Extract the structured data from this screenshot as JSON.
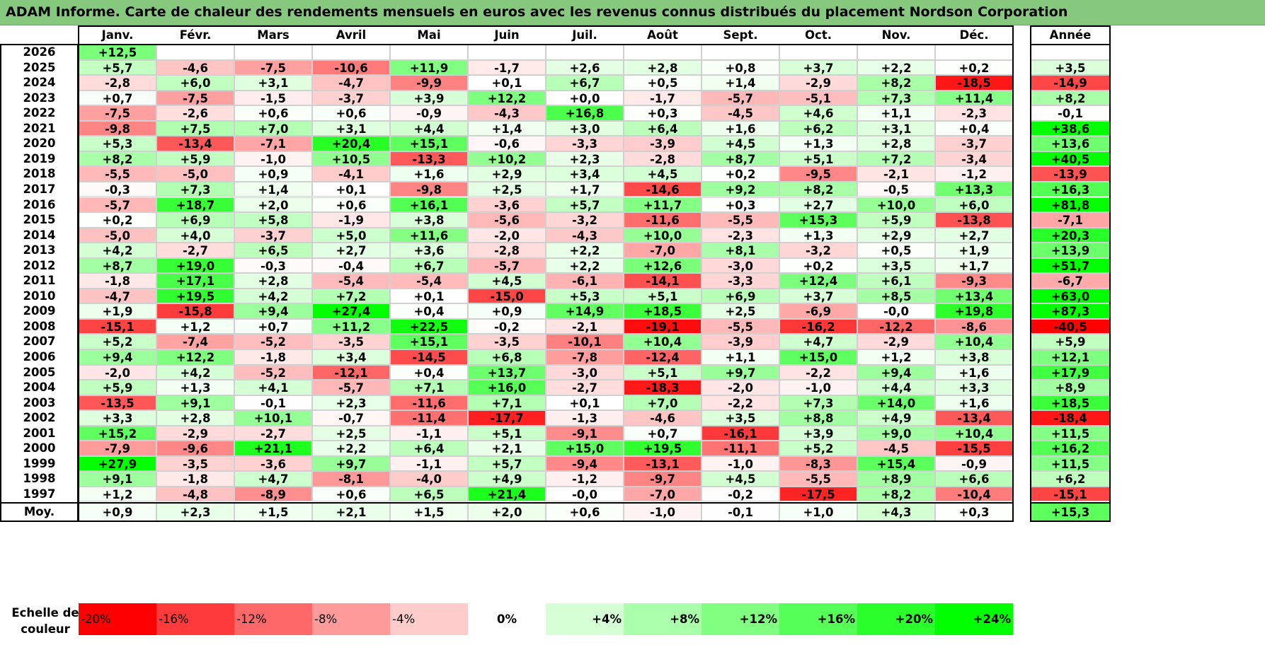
{
  "title": "ADAM Informe. Carte de chaleur des rendements mensuels en euros avec les revenus connus distribués du placement Nordson Corporation",
  "chart_data": {
    "type": "heatmap",
    "title": "ADAM Informe. Carte de chaleur des rendements mensuels en euros avec les revenus connus distribués du placement Nordson Corporation",
    "months": [
      "Janv.",
      "Févr.",
      "Mars",
      "Avril",
      "Mai",
      "Juin",
      "Juil.",
      "Août",
      "Sept.",
      "Oct.",
      "Nov.",
      "Déc."
    ],
    "year_header": "Année",
    "rows": [
      {
        "year": "2026",
        "values": [
          "+12,5",
          "",
          "",
          "",
          "",
          "",
          "",
          "",
          "",
          "",
          "",
          ""
        ],
        "annual": ""
      },
      {
        "year": "2025",
        "values": [
          "+5,7",
          "-4,6",
          "-7,5",
          "-10,6",
          "+11,9",
          "-1,7",
          "+2,6",
          "+2,8",
          "+0,8",
          "+3,7",
          "+2,2",
          "+0,2"
        ],
        "annual": "+3,5"
      },
      {
        "year": "2024",
        "values": [
          "-2,8",
          "+6,0",
          "+3,1",
          "-4,7",
          "-9,9",
          "+0,1",
          "+6,7",
          "+0,5",
          "+1,4",
          "-2,9",
          "+8,2",
          "-18,5"
        ],
        "annual": "-14,9"
      },
      {
        "year": "2023",
        "values": [
          "+0,7",
          "-7,5",
          "-1,5",
          "-3,7",
          "+3,9",
          "+12,2",
          "+0,0",
          "-1,7",
          "-5,7",
          "-5,1",
          "+7,3",
          "+11,4"
        ],
        "annual": "+8,2"
      },
      {
        "year": "2022",
        "values": [
          "-7,5",
          "-2,6",
          "+0,6",
          "+0,6",
          "-0,9",
          "-4,3",
          "+16,8",
          "+0,3",
          "-4,5",
          "+4,6",
          "+1,1",
          "-2,3"
        ],
        "annual": "-0,1"
      },
      {
        "year": "2021",
        "values": [
          "-9,8",
          "+7,5",
          "+7,0",
          "+3,1",
          "+4,4",
          "+1,4",
          "+3,0",
          "+6,4",
          "+1,6",
          "+6,2",
          "+3,1",
          "+0,4"
        ],
        "annual": "+38,6"
      },
      {
        "year": "2020",
        "values": [
          "+5,3",
          "-13,4",
          "-7,1",
          "+20,4",
          "+15,1",
          "-0,6",
          "-3,3",
          "-3,9",
          "+4,5",
          "+1,3",
          "+2,8",
          "-3,7"
        ],
        "annual": "+13,6"
      },
      {
        "year": "2019",
        "values": [
          "+8,2",
          "+5,9",
          "-1,0",
          "+10,5",
          "-13,3",
          "+10,2",
          "+2,3",
          "-2,8",
          "+8,7",
          "+5,1",
          "+7,2",
          "-3,4"
        ],
        "annual": "+40,5"
      },
      {
        "year": "2018",
        "values": [
          "-5,5",
          "-5,0",
          "+0,9",
          "-4,1",
          "+1,6",
          "+2,9",
          "+3,4",
          "+4,5",
          "+0,2",
          "-9,5",
          "-2,1",
          "-1,2"
        ],
        "annual": "-13,9"
      },
      {
        "year": "2017",
        "values": [
          "-0,3",
          "+7,3",
          "+1,4",
          "+0,1",
          "-9,8",
          "+2,5",
          "+1,7",
          "-14,6",
          "+9,2",
          "+8,2",
          "-0,5",
          "+13,3"
        ],
        "annual": "+16,3"
      },
      {
        "year": "2016",
        "values": [
          "-5,7",
          "+18,7",
          "+2,0",
          "+0,6",
          "+16,1",
          "-3,6",
          "+5,7",
          "+11,7",
          "+0,3",
          "+2,7",
          "+10,0",
          "+6,0"
        ],
        "annual": "+81,8"
      },
      {
        "year": "2015",
        "values": [
          "+0,2",
          "+6,9",
          "+5,8",
          "-1,9",
          "+3,8",
          "-5,6",
          "-3,2",
          "-11,6",
          "-5,5",
          "+15,3",
          "+5,9",
          "-13,8"
        ],
        "annual": "-7,1"
      },
      {
        "year": "2014",
        "values": [
          "-5,0",
          "+4,0",
          "-3,7",
          "+5,0",
          "+11,6",
          "-2,0",
          "-4,3",
          "+10,0",
          "-2,3",
          "+1,3",
          "+2,9",
          "+2,7"
        ],
        "annual": "+20,3"
      },
      {
        "year": "2013",
        "values": [
          "+4,2",
          "-2,7",
          "+6,5",
          "+2,7",
          "+3,6",
          "-2,8",
          "+2,2",
          "-7,0",
          "+8,1",
          "-3,2",
          "+0,5",
          "+1,9"
        ],
        "annual": "+13,9"
      },
      {
        "year": "2012",
        "values": [
          "+8,7",
          "+19,0",
          "-0,3",
          "-0,4",
          "+6,7",
          "-5,7",
          "+2,2",
          "+12,6",
          "-3,0",
          "+0,2",
          "+3,5",
          "+1,7"
        ],
        "annual": "+51,7"
      },
      {
        "year": "2011",
        "values": [
          "-1,8",
          "+17,1",
          "+2,8",
          "-5,4",
          "-5,4",
          "+4,5",
          "-6,1",
          "-14,1",
          "-3,3",
          "+12,4",
          "+6,1",
          "-9,3"
        ],
        "annual": "-6,7"
      },
      {
        "year": "2010",
        "values": [
          "-4,7",
          "+19,5",
          "+4,2",
          "+7,2",
          "+0,1",
          "-15,0",
          "+5,3",
          "+5,1",
          "+6,9",
          "+3,7",
          "+8,5",
          "+13,4"
        ],
        "annual": "+63,0"
      },
      {
        "year": "2009",
        "values": [
          "+1,9",
          "-15,8",
          "+9,4",
          "+27,4",
          "+0,4",
          "+0,9",
          "+14,9",
          "+18,5",
          "+2,5",
          "-6,9",
          "-0,0",
          "+19,8"
        ],
        "annual": "+87,3"
      },
      {
        "year": "2008",
        "values": [
          "-15,1",
          "+1,2",
          "+0,7",
          "+11,2",
          "+22,5",
          "-0,2",
          "-2,1",
          "-19,1",
          "-5,5",
          "-16,2",
          "-12,2",
          "-8,6"
        ],
        "annual": "-40,5"
      },
      {
        "year": "2007",
        "values": [
          "+5,2",
          "-7,4",
          "-5,2",
          "-3,5",
          "+15,1",
          "-3,5",
          "-10,1",
          "+10,4",
          "-3,9",
          "+4,7",
          "-2,9",
          "+10,4"
        ],
        "annual": "+5,9"
      },
      {
        "year": "2006",
        "values": [
          "+9,4",
          "+12,2",
          "-1,8",
          "+3,4",
          "-14,5",
          "+6,8",
          "-7,8",
          "-12,4",
          "+1,1",
          "+15,0",
          "+1,2",
          "+3,8"
        ],
        "annual": "+12,1"
      },
      {
        "year": "2005",
        "values": [
          "-2,0",
          "+4,2",
          "-5,2",
          "-12,1",
          "+0,4",
          "+13,7",
          "-3,0",
          "+5,1",
          "+9,7",
          "-2,2",
          "+9,4",
          "+1,6"
        ],
        "annual": "+17,9"
      },
      {
        "year": "2004",
        "values": [
          "+5,9",
          "+1,3",
          "+4,1",
          "-5,7",
          "+7,1",
          "+16,0",
          "-2,7",
          "-18,3",
          "-2,0",
          "-1,0",
          "+4,4",
          "+3,3"
        ],
        "annual": "+8,9"
      },
      {
        "year": "2003",
        "values": [
          "-13,5",
          "+9,1",
          "-0,1",
          "+2,3",
          "-11,6",
          "+7,1",
          "+0,1",
          "+7,0",
          "-2,2",
          "+7,3",
          "+14,0",
          "+1,6"
        ],
        "annual": "+18,5"
      },
      {
        "year": "2002",
        "values": [
          "+3,3",
          "+2,8",
          "+10,1",
          "-0,7",
          "-11,4",
          "-17,7",
          "-1,3",
          "-4,6",
          "+3,5",
          "+8,8",
          "+4,9",
          "-13,4"
        ],
        "annual": "-18,4"
      },
      {
        "year": "2001",
        "values": [
          "+15,2",
          "-2,9",
          "-2,7",
          "+2,5",
          "-1,1",
          "+5,1",
          "-9,1",
          "+0,7",
          "-16,1",
          "+3,9",
          "+9,0",
          "+10,4"
        ],
        "annual": "+11,5"
      },
      {
        "year": "2000",
        "values": [
          "-7,9",
          "-9,6",
          "+21,1",
          "+2,2",
          "+6,4",
          "+2,1",
          "+15,0",
          "+19,5",
          "-11,1",
          "+5,2",
          "-4,5",
          "-15,5"
        ],
        "annual": "+16,2"
      },
      {
        "year": "1999",
        "values": [
          "+27,9",
          "-3,5",
          "-3,6",
          "+9,7",
          "-1,1",
          "+5,7",
          "-9,4",
          "-13,1",
          "-1,0",
          "-8,3",
          "+15,4",
          "-0,9"
        ],
        "annual": "+11,5"
      },
      {
        "year": "1998",
        "values": [
          "+9,1",
          "-1,8",
          "+4,7",
          "-8,1",
          "-4,0",
          "+4,9",
          "-1,2",
          "-9,7",
          "+4,5",
          "-5,5",
          "+8,9",
          "+6,6"
        ],
        "annual": "+6,2"
      },
      {
        "year": "1997",
        "values": [
          "+1,2",
          "-4,8",
          "-8,9",
          "+0,6",
          "+6,5",
          "+21,4",
          "-0,0",
          "-7,0",
          "-0,2",
          "-17,5",
          "+8,2",
          "-10,4"
        ],
        "annual": "-15,1"
      }
    ],
    "average": {
      "label": "Moy.",
      "values": [
        "+0,9",
        "+2,3",
        "+1,5",
        "+2,1",
        "+1,5",
        "+2,0",
        "+0,6",
        "-1,0",
        "-0,1",
        "+1,0",
        "+4,3",
        "+0,3"
      ],
      "annual": "+15,3"
    },
    "scale": {
      "label": "Echelle de couleur",
      "steps": [
        {
          "label": "-20%",
          "value": -20,
          "color": "#ff0000"
        },
        {
          "label": "-16%",
          "value": -16,
          "color": "#ff3a3a"
        },
        {
          "label": "-12%",
          "value": -12,
          "color": "#ff6868"
        },
        {
          "label": "-8%",
          "value": -8,
          "color": "#ff9a9a"
        },
        {
          "label": "-4%",
          "value": -4,
          "color": "#ffcccc"
        },
        {
          "label": "0%",
          "value": 0,
          "color": "#ffffff"
        },
        {
          "label": "+4%",
          "value": 4,
          "color": "#d6ffd6"
        },
        {
          "label": "+8%",
          "value": 8,
          "color": "#aaffaa"
        },
        {
          "label": "+12%",
          "value": 12,
          "color": "#80ff80"
        },
        {
          "label": "+16%",
          "value": 16,
          "color": "#55ff55"
        },
        {
          "label": "+20%",
          "value": 20,
          "color": "#2bff2b"
        },
        {
          "label": "+24%",
          "value": 24,
          "color": "#00ff00"
        }
      ]
    }
  }
}
